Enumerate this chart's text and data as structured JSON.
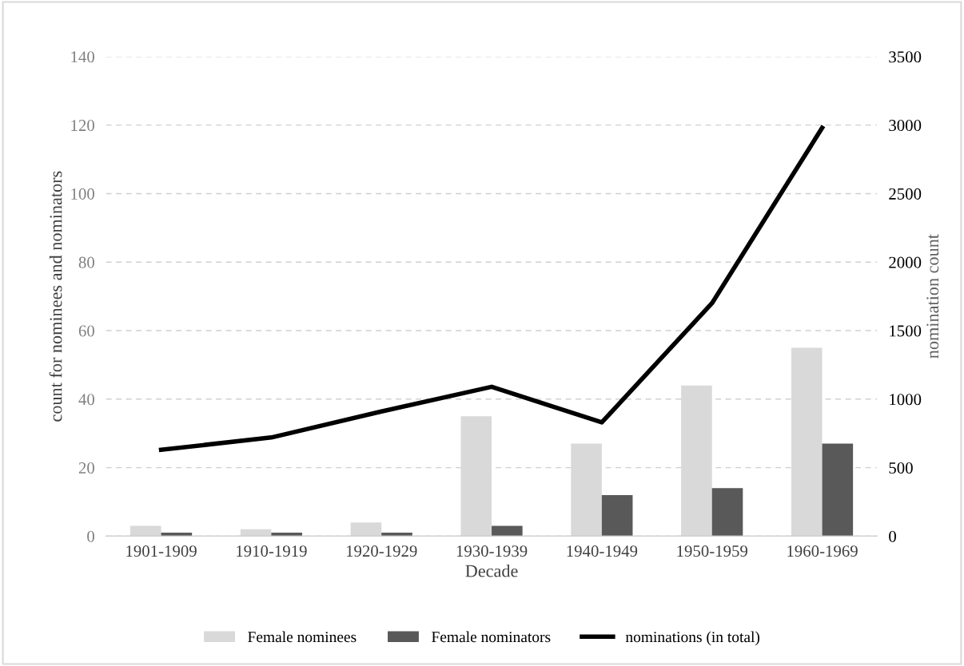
{
  "chart_data": {
    "type": "bar",
    "xlabel": "Decade",
    "ylabel": "count for nominees and nominators",
    "y2label": "nomination count",
    "categories": [
      "1901-1909",
      "1910-1919",
      "1920-1929",
      "1930-1939",
      "1940-1949",
      "1950-1959",
      "1960-1969"
    ],
    "series": [
      {
        "name": "Female nominees",
        "color": "#d9d9d9",
        "values": [
          3,
          2,
          4,
          35,
          27,
          44,
          55
        ]
      },
      {
        "name": "Female nominators",
        "color": "#595959",
        "values": [
          1,
          1,
          1,
          3,
          12,
          14,
          27
        ]
      },
      {
        "name": "nominations (in total)",
        "type": "line",
        "axis": "y2",
        "color": "#000000",
        "values": [
          630,
          720,
          910,
          1090,
          830,
          1700,
          2980
        ]
      }
    ],
    "ylim": [
      0,
      140
    ],
    "yticks": [
      0,
      20,
      40,
      60,
      80,
      100,
      120,
      140
    ],
    "y2lim": [
      0,
      3500
    ],
    "y2ticks": [
      0,
      500,
      1000,
      1500,
      2000,
      2500,
      3000,
      3500
    ],
    "grid": "y",
    "legend": "bottom"
  }
}
